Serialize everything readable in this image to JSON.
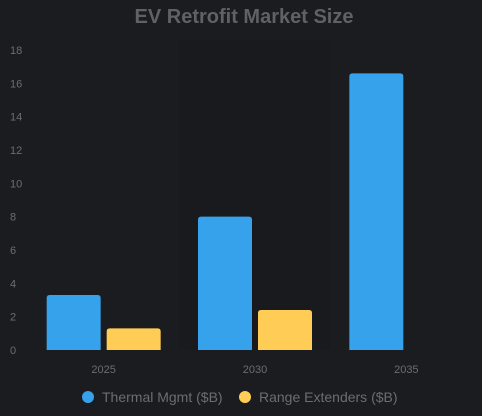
{
  "colors": {
    "background": "#1b1c1f",
    "band": "#191a1d",
    "thermal": "#36a2eb",
    "range": "#ffcd56"
  },
  "chart_data": {
    "type": "bar",
    "title": "EV Retrofit Market Size",
    "xlabel": "",
    "ylabel": "",
    "categories": [
      "2025",
      "2030",
      "2035"
    ],
    "ylim": [
      0,
      18
    ],
    "yticks": [
      "0",
      "2",
      "4",
      "6",
      "8",
      "10",
      "12",
      "14",
      "16",
      "18"
    ],
    "grid": false,
    "legend_position": "bottom",
    "series": [
      {
        "name": "Thermal Mgmt ($B)",
        "values": [
          3.3,
          8.0,
          16.6
        ]
      },
      {
        "name": "Range Extenders ($B)",
        "values": [
          1.3,
          2.4,
          0
        ]
      }
    ]
  }
}
